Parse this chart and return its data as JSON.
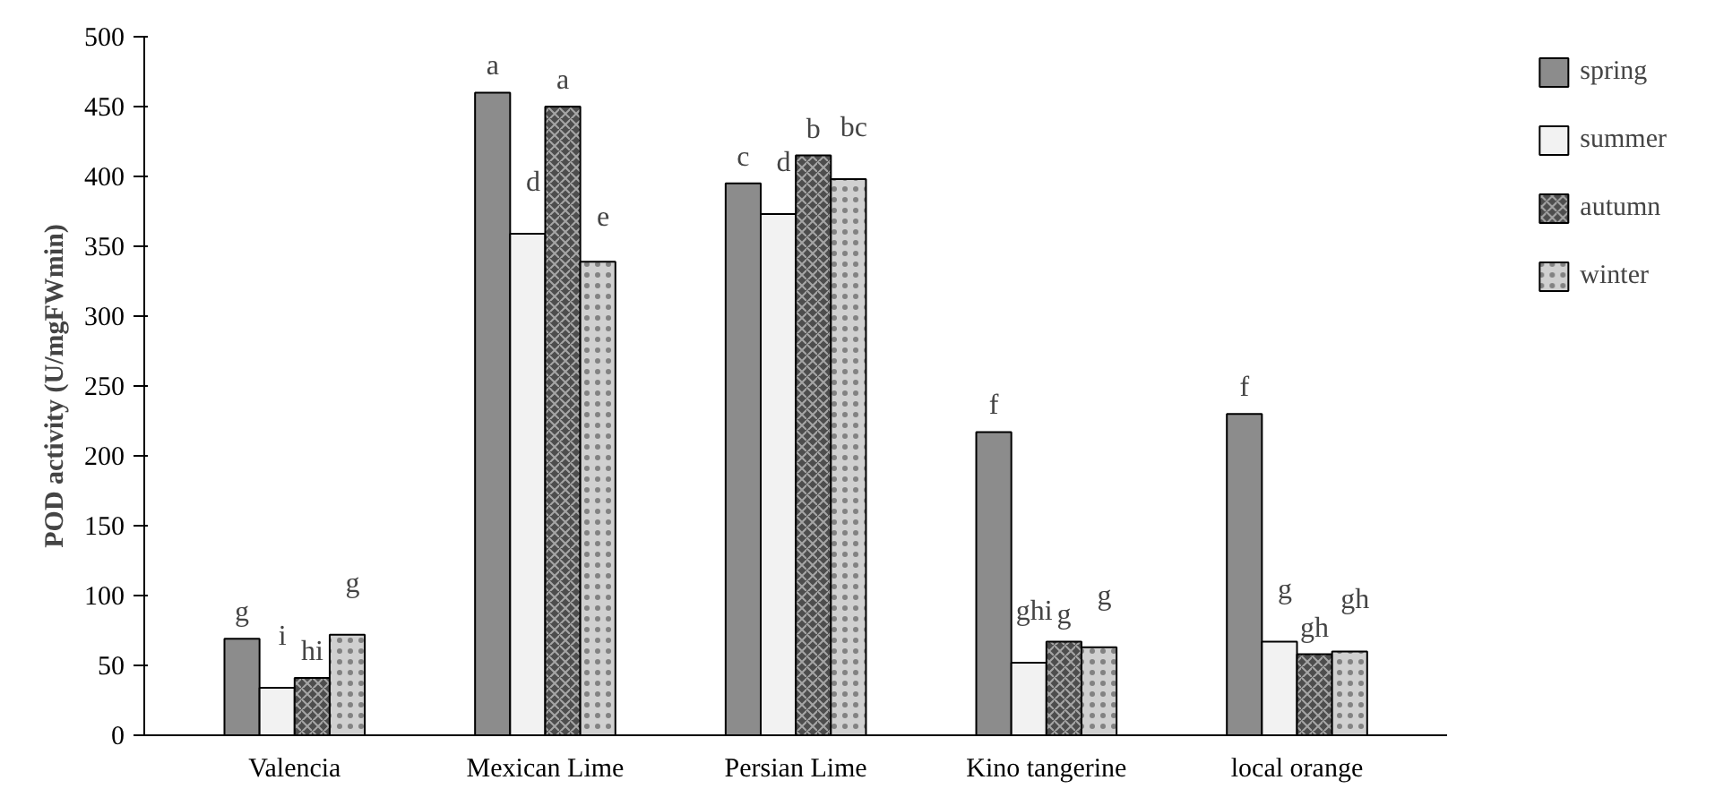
{
  "chart_data": {
    "type": "bar",
    "ylabel": "POD activity (U/mgFWmin)",
    "categories": [
      "Valencia",
      "Mexican Lime",
      "Persian Lime",
      "Kino tangerine",
      "local orange"
    ],
    "series": [
      {
        "name": "spring",
        "color": "#8c8c8c",
        "values": [
          69,
          460,
          395,
          217,
          230
        ],
        "value_labels": [
          "g",
          "a",
          "c",
          "f",
          "f"
        ]
      },
      {
        "name": "summer",
        "color": "#f2f2f2",
        "values": [
          34,
          359,
          373,
          52,
          67
        ],
        "value_labels": [
          "i",
          "d",
          "d",
          "ghi",
          "g"
        ]
      },
      {
        "name": "autumn",
        "color": "#4d4d4d",
        "values": [
          41,
          450,
          415,
          67,
          58
        ],
        "value_labels": [
          "hi",
          "a",
          "b",
          "g",
          "gh"
        ]
      },
      {
        "name": "winter",
        "color": "#d0d0d0",
        "values": [
          72,
          339,
          398,
          63,
          60
        ],
        "value_labels": [
          "g",
          "e",
          "bc",
          "g",
          "gh"
        ]
      }
    ],
    "ylim": [
      0,
      500
    ],
    "yticks": [
      0,
      50,
      100,
      150,
      200,
      250,
      300,
      350,
      400,
      450,
      500
    ],
    "grid": false,
    "legend": "right"
  }
}
